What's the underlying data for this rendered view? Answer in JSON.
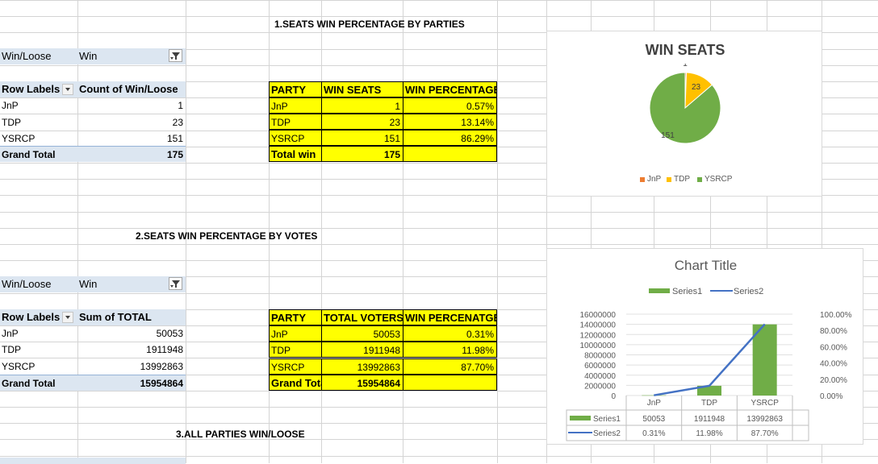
{
  "section1": {
    "heading": "1.SEATS WIN PERCENTAGE BY PARTIES",
    "filter_label": "Win/Loose",
    "filter_value": "Win",
    "pivot": {
      "col1": "Row Labels",
      "col2": "Count of Win/Loose",
      "rows": [
        {
          "label": "JnP",
          "value": "1"
        },
        {
          "label": "TDP",
          "value": "23"
        },
        {
          "label": "YSRCP",
          "value": "151"
        }
      ],
      "total_label": "Grand Total",
      "total_value": "175"
    },
    "table": {
      "headers": [
        "PARTY",
        "WIN SEATS",
        "WIN PERCENTAGE"
      ],
      "rows": [
        [
          "JnP",
          "1",
          "0.57%"
        ],
        [
          "TDP",
          "23",
          "13.14%"
        ],
        [
          "YSRCP",
          "151",
          "86.29%"
        ]
      ],
      "total_label": "Total win",
      "total_value": "175"
    }
  },
  "section2": {
    "heading": "2.SEATS WIN PERCENTAGE BY VOTES",
    "filter_label": "Win/Loose",
    "filter_value": "Win",
    "pivot": {
      "col1": "Row Labels",
      "col2": "Sum of  TOTAL",
      "rows": [
        {
          "label": "JnP",
          "value": "50053"
        },
        {
          "label": "TDP",
          "value": "1911948"
        },
        {
          "label": "YSRCP",
          "value": "13992863"
        }
      ],
      "total_label": "Grand Total",
      "total_value": "15954864"
    },
    "table": {
      "headers": [
        "PARTY",
        "TOTAL VOTERS",
        "WIN PERCENATGE"
      ],
      "rows": [
        [
          "JnP",
          "50053",
          "0.31%"
        ],
        [
          "TDP",
          "1911948",
          "11.98%"
        ],
        [
          "YSRCP",
          "13992863",
          "87.70%"
        ]
      ],
      "total_label": "Grand Total",
      "total_value": "15954864"
    }
  },
  "section3": {
    "heading": "3.ALL PARTIES WIN/LOOSE"
  },
  "colors": {
    "jnp": "#ed7d31",
    "tdp": "#ffc000",
    "ysrcp": "#70ad47",
    "series1": "#70ad47",
    "series2": "#4472c4",
    "highlight": "#ffff00",
    "pivot_header": "#dce6f1"
  },
  "chart_data": [
    {
      "type": "pie",
      "title": "WIN SEATS",
      "categories": [
        "JnP",
        "TDP",
        "YSRCP"
      ],
      "values": [
        1,
        23,
        151
      ],
      "data_labels": [
        "1",
        "23",
        "151"
      ],
      "legend": "bottom"
    },
    {
      "type": "bar",
      "title": "Chart Title",
      "categories": [
        "JnP",
        "TDP",
        "YSRCP"
      ],
      "series": [
        {
          "name": "Series1",
          "type": "bar",
          "axis": "primary",
          "values": [
            50053,
            1911948,
            13992863
          ],
          "labels": [
            "50053",
            "1911948",
            "13992863"
          ]
        },
        {
          "name": "Series2",
          "type": "line",
          "axis": "secondary",
          "values": [
            0.0031,
            0.1198,
            0.877
          ],
          "labels": [
            "0.31%",
            "11.98%",
            "87.70%"
          ]
        }
      ],
      "y_ticks": [
        "16000000",
        "14000000",
        "12000000",
        "10000000",
        "8000000",
        "6000000",
        "4000000",
        "2000000",
        "0"
      ],
      "y2_ticks": [
        "100.00%",
        "80.00%",
        "60.00%",
        "40.00%",
        "20.00%",
        "0.00%"
      ],
      "ylim": [
        0,
        16000000
      ],
      "y2lim": [
        0,
        1
      ],
      "legend": "top",
      "data_table": true
    }
  ]
}
